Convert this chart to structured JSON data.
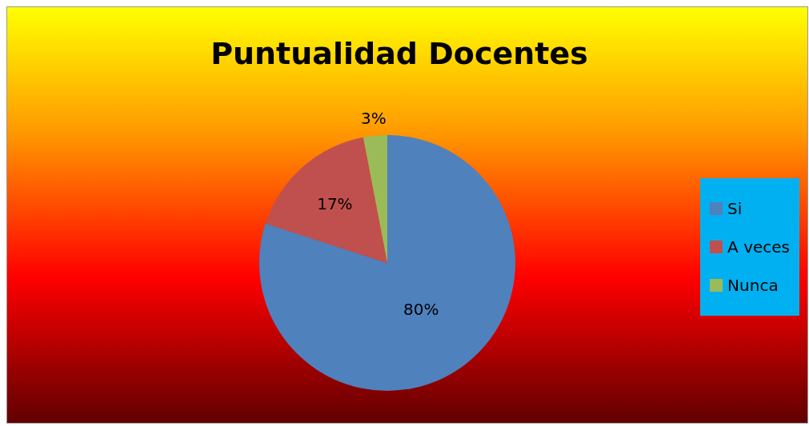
{
  "chart_data": {
    "type": "pie",
    "title": "Puntualidad Docentes",
    "categories": [
      "Si",
      "A veces",
      "Nunca"
    ],
    "values": [
      80,
      17,
      3
    ],
    "colors": [
      "#4f81bd",
      "#c0504d",
      "#9bbb59"
    ],
    "value_labels": [
      "80%",
      "17%",
      "3%"
    ],
    "legend": "right"
  }
}
